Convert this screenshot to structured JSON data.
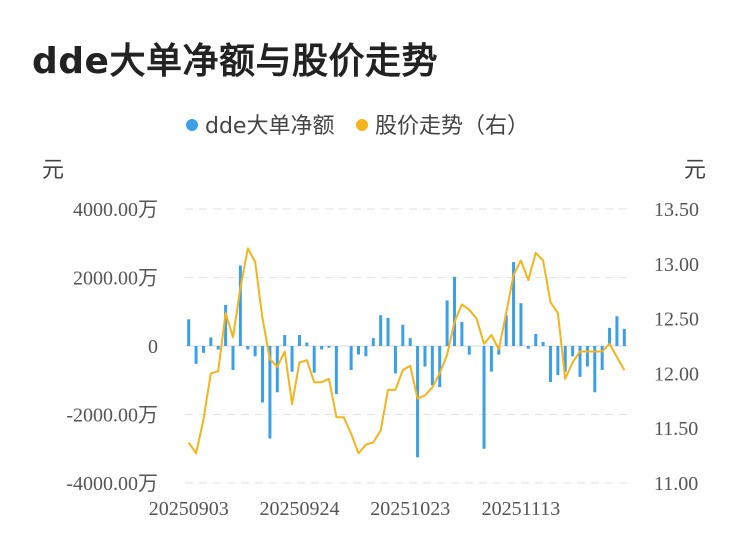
{
  "title": "dde大单净额与股价走势",
  "chart_data": {
    "type": "bar+line",
    "title": "dde大单净额与股价走势",
    "legend": {
      "placement": "top-center",
      "items": [
        {
          "name": "dde大单净额",
          "color": "#3ba0e8"
        },
        {
          "name": "股价走势（右）",
          "color": "#f5b31c"
        }
      ]
    },
    "left_axis": {
      "unit": "元",
      "ylim": [
        -4000,
        4000
      ],
      "ticks": [
        4000,
        2000,
        0,
        -2000,
        -4000
      ],
      "tick_labels": [
        "4000.00万",
        "2000.00万",
        "0",
        "-2000.00万",
        "-4000.00万"
      ]
    },
    "right_axis": {
      "unit": "元",
      "ylim": [
        11.0,
        13.5
      ],
      "ticks": [
        13.5,
        13.0,
        12.5,
        12.0,
        11.5,
        11.0
      ],
      "tick_labels": [
        "13.50",
        "13.00",
        "12.50",
        "12.00",
        "11.50",
        "11.00"
      ]
    },
    "x_tick_labels": [
      {
        "index": 0,
        "label": "20250903"
      },
      {
        "index": 15,
        "label": "20250924"
      },
      {
        "index": 30,
        "label": "20251023"
      },
      {
        "index": 45,
        "label": "20251113"
      }
    ],
    "grid": true,
    "series": [
      {
        "name": "dde大单净额",
        "type": "bar",
        "color": "#3ba0e8",
        "values": [
          780,
          -520,
          -200,
          250,
          -100,
          1200,
          -700,
          2350,
          -100,
          -300,
          -1650,
          -2700,
          -1350,
          320,
          -750,
          320,
          100,
          -780,
          -100,
          -50,
          -1400,
          0,
          -700,
          -250,
          -300,
          230,
          900,
          820,
          -800,
          620,
          230,
          -3250,
          -600,
          -1150,
          -1200,
          1330,
          2020,
          700,
          -250,
          0,
          -3000,
          -750,
          -250,
          900,
          2450,
          1250,
          -80,
          350,
          120,
          -1050,
          -850,
          -750,
          -300,
          -900,
          -600,
          -1350,
          -700,
          530,
          870,
          500
        ]
      },
      {
        "name": "股价走势（右）",
        "type": "line",
        "axis": "right",
        "color": "#f5b31c",
        "values": [
          11.37,
          11.27,
          11.58,
          12.0,
          12.02,
          12.55,
          12.33,
          12.78,
          13.14,
          13.02,
          12.5,
          12.13,
          12.06,
          12.2,
          11.72,
          12.1,
          12.12,
          11.92,
          11.92,
          11.95,
          11.6,
          11.6,
          11.45,
          11.27,
          11.35,
          11.37,
          11.48,
          11.85,
          11.85,
          12.03,
          12.07,
          11.77,
          11.8,
          11.87,
          12.0,
          12.17,
          12.47,
          12.63,
          12.58,
          12.5,
          12.27,
          12.35,
          12.22,
          12.55,
          12.9,
          13.03,
          12.85,
          13.1,
          13.03,
          12.65,
          12.55,
          11.95,
          12.1,
          12.2,
          12.2,
          12.2,
          12.2,
          12.27,
          12.15,
          12.03
        ]
      }
    ]
  }
}
